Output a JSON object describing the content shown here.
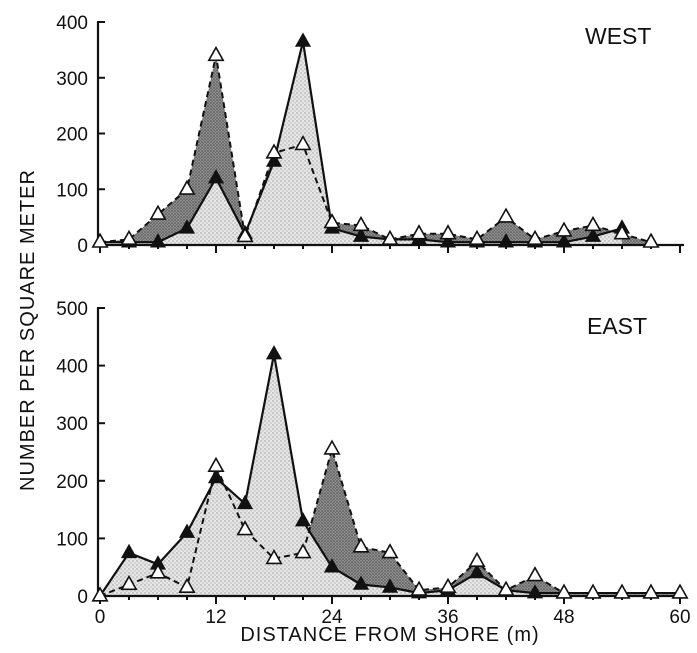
{
  "figure": {
    "ylabel": "NUMBER PER SQUARE METER",
    "xlabel": "DISTANCE FROM SHORE (m)"
  },
  "chart_data": [
    {
      "type": "area",
      "panel_label": "WEST",
      "xlim": [
        0,
        60
      ],
      "ylim": [
        0,
        400
      ],
      "x_ticks": [
        0,
        12,
        24,
        36,
        48,
        60
      ],
      "x_tick_labels": [],
      "y_ticks": [
        0,
        100,
        200,
        300,
        400
      ],
      "y_tick_labels": [
        "0",
        "100",
        "200",
        "300",
        "400"
      ],
      "series": [
        {
          "marker": "filled-triangle",
          "line": "solid",
          "x": [
            0,
            3,
            6,
            9,
            12,
            15,
            18,
            21,
            24,
            27,
            30,
            33,
            36,
            39,
            42,
            45,
            48,
            51,
            54
          ],
          "values": [
            5,
            5,
            5,
            30,
            120,
            20,
            150,
            365,
            30,
            15,
            10,
            10,
            5,
            5,
            5,
            5,
            5,
            15,
            30
          ]
        },
        {
          "marker": "open-triangle",
          "line": "dashed",
          "x": [
            0,
            3,
            6,
            9,
            12,
            15,
            18,
            21,
            24,
            27,
            30,
            33,
            36,
            39,
            42,
            45,
            48,
            51,
            54,
            57
          ],
          "values": [
            5,
            10,
            55,
            100,
            340,
            15,
            165,
            180,
            40,
            35,
            10,
            20,
            20,
            10,
            50,
            10,
            25,
            35,
            20,
            5
          ]
        }
      ]
    },
    {
      "type": "area",
      "panel_label": "EAST",
      "xlim": [
        0,
        60
      ],
      "ylim": [
        0,
        500
      ],
      "x_ticks": [
        0,
        12,
        24,
        36,
        48,
        60
      ],
      "x_tick_labels": [
        "0",
        "12",
        "24",
        "36",
        "48",
        "60"
      ],
      "y_ticks": [
        0,
        100,
        200,
        300,
        400,
        500
      ],
      "y_tick_labels": [
        "0",
        "100",
        "200",
        "300",
        "400",
        "500"
      ],
      "series": [
        {
          "marker": "filled-triangle",
          "line": "solid",
          "x": [
            0,
            3,
            6,
            9,
            12,
            15,
            18,
            21,
            24,
            27,
            30,
            33,
            36,
            39,
            42,
            45,
            48,
            51,
            54,
            57,
            60
          ],
          "values": [
            0,
            75,
            55,
            110,
            205,
            160,
            420,
            130,
            50,
            20,
            15,
            5,
            10,
            40,
            10,
            5,
            5,
            5,
            5,
            5,
            5
          ]
        },
        {
          "marker": "open-triangle",
          "line": "dashed",
          "x": [
            0,
            3,
            6,
            9,
            12,
            15,
            18,
            21,
            24,
            27,
            30,
            33,
            36,
            39,
            42,
            45,
            48,
            51,
            54,
            57,
            60
          ],
          "values": [
            0,
            20,
            40,
            15,
            225,
            115,
            65,
            75,
            255,
            85,
            75,
            10,
            15,
            60,
            10,
            35,
            5,
            5,
            5,
            5,
            5
          ]
        }
      ]
    }
  ]
}
